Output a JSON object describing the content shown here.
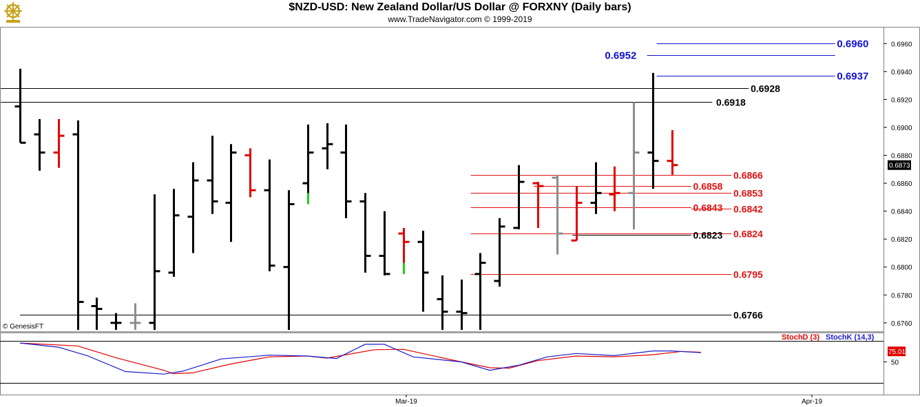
{
  "header": {
    "title": "$NZD-USD:  New Zealand Dollar/US Dollar @ FORXNY  (Daily bars)",
    "subtitle": "www.TradeNavigator.com © 1999-2019",
    "logo_icon": "ship-wheel-logo-icon"
  },
  "watermark": "© GenesisFT",
  "colors": {
    "up": "#000000",
    "down": "#e00000",
    "gray": "#8c8c8c",
    "green": "#22cc22",
    "blue_level": "#1010d0",
    "red_level": "#e01010",
    "black_level": "#000000",
    "stoch_d": "#e00000",
    "stoch_k": "#1a1acc"
  },
  "chart_data": {
    "type": "ohlc",
    "price_axis": {
      "range": [
        0.6754,
        0.6972
      ],
      "ticks": [
        0.676,
        0.678,
        0.68,
        0.682,
        0.684,
        0.686,
        0.688,
        0.69,
        0.692,
        0.694,
        0.696
      ],
      "tick_labels": [
        "0.6760",
        "0.6780",
        "0.6800",
        "0.6820",
        "0.6840",
        "0.6860",
        "0.6880",
        "0.6900",
        "0.6920",
        "0.6940",
        "0.6960"
      ],
      "last_price": "0.6873"
    },
    "x_labels": [
      "Mar-19",
      "Apr-19"
    ],
    "bars": [
      {
        "o": 0.6915,
        "h": 0.6942,
        "l": 0.6889,
        "c": 0.6889,
        "color": "up"
      },
      {
        "o": 0.6895,
        "h": 0.6906,
        "l": 0.6869,
        "c": 0.6882,
        "color": "up"
      },
      {
        "o": 0.6882,
        "h": 0.6906,
        "l": 0.6871,
        "c": 0.6894,
        "color": "down"
      },
      {
        "o": 0.6895,
        "h": 0.6905,
        "l": 0.6755,
        "c": 0.6775,
        "color": "up"
      },
      {
        "o": 0.6772,
        "h": 0.6778,
        "l": 0.6755,
        "c": 0.677,
        "color": "up"
      },
      {
        "o": 0.676,
        "h": 0.6767,
        "l": 0.6755,
        "c": 0.676,
        "color": "up"
      },
      {
        "o": 0.676,
        "h": 0.6774,
        "l": 0.6755,
        "c": 0.676,
        "color": "gray"
      },
      {
        "o": 0.676,
        "h": 0.6852,
        "l": 0.6755,
        "c": 0.6797,
        "color": "up"
      },
      {
        "o": 0.6796,
        "h": 0.6856,
        "l": 0.6793,
        "c": 0.6837,
        "color": "up"
      },
      {
        "o": 0.6836,
        "h": 0.6875,
        "l": 0.681,
        "c": 0.6862,
        "color": "up"
      },
      {
        "o": 0.6862,
        "h": 0.6894,
        "l": 0.6838,
        "c": 0.6847,
        "color": "up"
      },
      {
        "o": 0.6846,
        "h": 0.6888,
        "l": 0.6818,
        "c": 0.6882,
        "color": "up"
      },
      {
        "o": 0.688,
        "h": 0.6885,
        "l": 0.685,
        "c": 0.6855,
        "color": "down"
      },
      {
        "o": 0.6855,
        "h": 0.6877,
        "l": 0.6797,
        "c": 0.6801,
        "color": "up"
      },
      {
        "o": 0.68,
        "h": 0.6855,
        "l": 0.6755,
        "c": 0.6845,
        "color": "up"
      },
      {
        "o": 0.686,
        "h": 0.6902,
        "l": 0.6845,
        "c": 0.6882,
        "color": "up"
      },
      {
        "o": 0.6885,
        "h": 0.6903,
        "l": 0.687,
        "c": 0.6888,
        "color": "up"
      },
      {
        "o": 0.6882,
        "h": 0.6902,
        "l": 0.6835,
        "c": 0.6847,
        "color": "up"
      },
      {
        "o": 0.6847,
        "h": 0.6853,
        "l": 0.6796,
        "c": 0.6808,
        "color": "up"
      },
      {
        "o": 0.6808,
        "h": 0.684,
        "l": 0.6794,
        "c": 0.6795,
        "color": "up"
      },
      {
        "o": 0.6824,
        "h": 0.6828,
        "l": 0.6795,
        "c": 0.6818,
        "color": "down"
      },
      {
        "o": 0.6818,
        "h": 0.6826,
        "l": 0.6768,
        "c": 0.6796,
        "color": "up"
      },
      {
        "o": 0.6777,
        "h": 0.6794,
        "l": 0.6755,
        "c": 0.6768,
        "color": "up"
      },
      {
        "o": 0.6768,
        "h": 0.6791,
        "l": 0.6755,
        "c": 0.6767,
        "color": "up"
      },
      {
        "o": 0.6795,
        "h": 0.681,
        "l": 0.6755,
        "c": 0.6803,
        "color": "up"
      },
      {
        "o": 0.679,
        "h": 0.6835,
        "l": 0.6786,
        "c": 0.6829,
        "color": "up"
      },
      {
        "o": 0.6828,
        "h": 0.6873,
        "l": 0.6827,
        "c": 0.6861,
        "color": "up"
      },
      {
        "o": 0.686,
        "h": 0.6861,
        "l": 0.6828,
        "c": 0.6858,
        "color": "down"
      },
      {
        "o": 0.6864,
        "h": 0.6866,
        "l": 0.6809,
        "c": 0.6824,
        "color": "gray"
      },
      {
        "o": 0.6819,
        "h": 0.6858,
        "l": 0.6819,
        "c": 0.6846,
        "color": "down"
      },
      {
        "o": 0.6846,
        "h": 0.6875,
        "l": 0.6838,
        "c": 0.6853,
        "color": "up"
      },
      {
        "o": 0.6852,
        "h": 0.6872,
        "l": 0.684,
        "c": 0.6853,
        "color": "down"
      },
      {
        "o": 0.6853,
        "h": 0.6918,
        "l": 0.6827,
        "c": 0.6882,
        "color": "gray"
      },
      {
        "o": 0.6882,
        "h": 0.6939,
        "l": 0.6856,
        "c": 0.6876,
        "color": "up"
      },
      {
        "o": 0.6876,
        "h": 0.6898,
        "l": 0.6866,
        "c": 0.6873,
        "color": "down"
      }
    ],
    "levels": [
      {
        "value": 0.696,
        "label": "0.6960",
        "color": "blue_level",
        "from_bar": 33.2,
        "to_bar": 42.5,
        "label_bar": 42.6
      },
      {
        "value": 0.6952,
        "label": "0.6952",
        "color": "blue_level",
        "from_bar": 32.7,
        "to_bar": 42.5,
        "label_bar": 30.5
      },
      {
        "value": 0.6937,
        "label": "0.6937",
        "color": "blue_level",
        "from_bar": 33.2,
        "to_bar": 42.5,
        "label_bar": 42.6
      },
      {
        "value": 0.6928,
        "label": "0.6928",
        "color": "black_level",
        "from_bar": -1.0,
        "to_bar": 38.0,
        "label_bar": 38.1
      },
      {
        "value": 0.6918,
        "label": "0.6918",
        "color": "black_level",
        "from_bar": -1.0,
        "to_bar": 36.1,
        "label_bar": 36.3
      },
      {
        "value": 0.6866,
        "label": "0.6866",
        "color": "red_level",
        "from_bar": 23.5,
        "to_bar": 37.1,
        "label_bar": 37.2
      },
      {
        "value": 0.6858,
        "label": "0.6858",
        "color": "red_level",
        "from_bar": 26.8,
        "to_bar": 35.0,
        "label_bar": 35.1
      },
      {
        "value": 0.6853,
        "label": "0.6853",
        "color": "red_level",
        "from_bar": 23.5,
        "to_bar": 37.1,
        "label_bar": 37.2
      },
      {
        "value": 0.6843,
        "label": "0.6843",
        "color": "red_level",
        "from_bar": 23.5,
        "to_bar": 35.0,
        "label_bar": 35.1
      },
      {
        "value": 0.6842,
        "label": "0.6842",
        "color": "red_level",
        "from_bar": 35.0,
        "to_bar": 37.1,
        "label_bar": 37.2
      },
      {
        "value": 0.6824,
        "label": "0.6824",
        "color": "red_level",
        "from_bar": 23.5,
        "to_bar": 37.1,
        "label_bar": 37.2
      },
      {
        "value": 0.6823,
        "label": "0.6823",
        "color": "black_level",
        "from_bar": 28.8,
        "to_bar": 35.0,
        "label_bar": 35.1
      },
      {
        "value": 0.6795,
        "label": "0.6795",
        "color": "red_level",
        "from_bar": 23.5,
        "to_bar": 37.1,
        "label_bar": 37.2
      },
      {
        "value": 0.6766,
        "label": "0.6766",
        "color": "black_level",
        "from_bar": 0.0,
        "to_bar": 37.1,
        "label_bar": 37.2
      }
    ],
    "stochastic": {
      "range": [
        0,
        100
      ],
      "ticks": [
        50
      ],
      "tick_labels": [
        "50"
      ],
      "legend": [
        {
          "label": "StochD (3)",
          "color": "stoch_d"
        },
        {
          "label": "StochK (14,3)",
          "color": "stoch_k"
        }
      ],
      "last_value": "75.01",
      "d_points": [
        [
          0.0,
          95
        ],
        [
          3.0,
          88
        ],
        [
          5.0,
          60
        ],
        [
          7.5,
          30
        ],
        [
          8.0,
          22
        ],
        [
          9.0,
          24
        ],
        [
          11.0,
          45
        ],
        [
          13.0,
          62
        ],
        [
          15.0,
          64
        ],
        [
          16.0,
          59
        ],
        [
          18.5,
          79
        ],
        [
          20.0,
          80
        ],
        [
          22.5,
          55
        ],
        [
          24.5,
          36
        ],
        [
          25.5,
          35
        ],
        [
          27.0,
          53
        ],
        [
          29.0,
          64
        ],
        [
          31.0,
          62
        ],
        [
          33.0,
          67
        ],
        [
          34.5,
          75
        ],
        [
          35.5,
          73
        ]
      ],
      "k_points": [
        [
          0.0,
          95
        ],
        [
          2.0,
          85
        ],
        [
          3.5,
          65
        ],
        [
          5.5,
          27
        ],
        [
          7.5,
          21
        ],
        [
          8.5,
          28
        ],
        [
          10.5,
          57
        ],
        [
          13.0,
          66
        ],
        [
          15.0,
          64
        ],
        [
          16.5,
          58
        ],
        [
          18.0,
          92
        ],
        [
          19.0,
          92
        ],
        [
          20.5,
          62
        ],
        [
          23.0,
          50
        ],
        [
          24.5,
          30
        ],
        [
          26.0,
          42
        ],
        [
          27.5,
          62
        ],
        [
          29.0,
          70
        ],
        [
          31.0,
          65
        ],
        [
          33.0,
          76
        ],
        [
          34.0,
          76
        ],
        [
          35.5,
          72
        ]
      ]
    }
  }
}
